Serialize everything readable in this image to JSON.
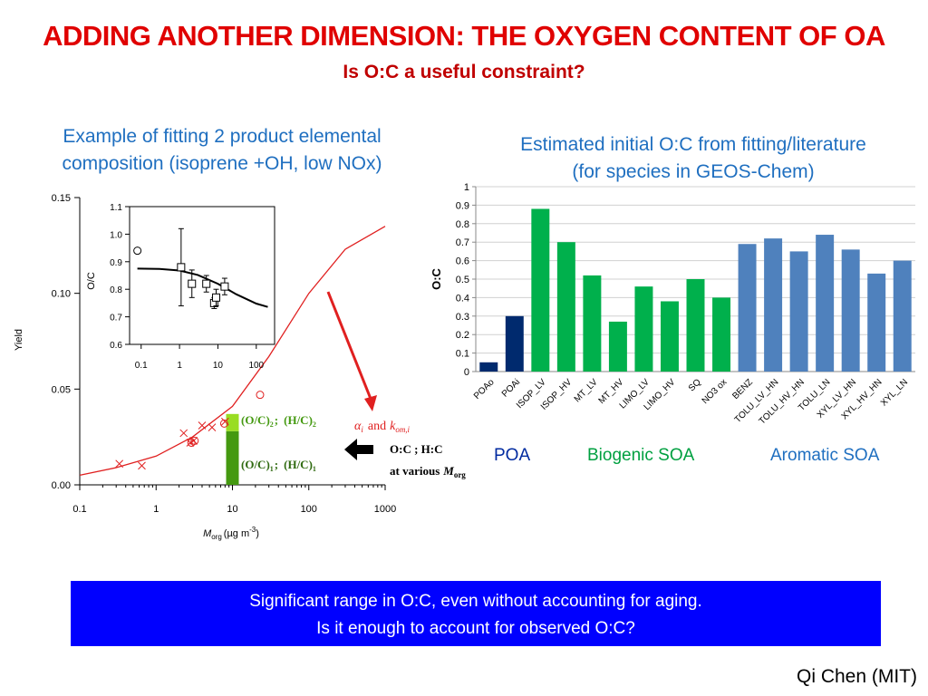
{
  "header": {
    "title": "ADDING ANOTHER DIMENSION: THE OXYGEN CONTENT OF OA",
    "subtitle": "Is O:C a useful constraint?"
  },
  "left_panel": {
    "caption_line1": "Example of fitting 2 product elemental",
    "caption_line2": "composition (isoprene +OH, low NOx)",
    "label_oc2": "(O/C)",
    "label_hc2": "(H/C)",
    "sub2": "2",
    "label_oc1": "(O/C)",
    "label_hc1": "(H/C)",
    "sub1": "1",
    "sep": ";",
    "alpha": "α",
    "alpha_sub": "i",
    "and_text": "and",
    "k": "k",
    "k_sub": "om,i",
    "arrow_label_line1": "O:C  ;  H:C",
    "arrow_label_line2": "at various",
    "m_org": "M",
    "m_org_sub": "org",
    "colors": {
      "curve": "#e02020",
      "bar_light": "#99dd22",
      "bar_dark": "#449910",
      "arrow": "#e02020"
    }
  },
  "right_panel": {
    "caption_line1": "Estimated initial O:C from fitting/literature",
    "caption_line2": "(for species in GEOS-Chem)",
    "group_labels": [
      {
        "text": "POA",
        "color": "#002aa0"
      },
      {
        "text": "Biogenic SOA",
        "color": "#00a040"
      },
      {
        "text": "Aromatic SOA",
        "color": "#1f6fc0"
      }
    ]
  },
  "chart_data": [
    {
      "type": "scatter",
      "xlabel": "M",
      "xlabel_sub": "org",
      "xlabel_units": "(µg m",
      "xlabel_sup": "-3",
      "xlabel_close": ")",
      "ylabel": "Yield",
      "xscale": "log",
      "xlim": [
        0.1,
        1000
      ],
      "ylim": [
        0.0,
        0.15
      ],
      "xticks": [
        "0.1",
        "1",
        "10",
        "100",
        "1000"
      ],
      "yticks": [
        "0.00",
        "0.05",
        "0.10",
        "0.15"
      ],
      "x_markers": [
        [
          0.33,
          0.011
        ],
        [
          0.65,
          0.01
        ],
        [
          2.3,
          0.027
        ],
        [
          2.8,
          0.022
        ],
        [
          3.1,
          0.023
        ],
        [
          4.0,
          0.031
        ],
        [
          5.4,
          0.03
        ],
        [
          8.0,
          0.033
        ]
      ],
      "circle_markers": [
        [
          2.9,
          0.022
        ],
        [
          3.2,
          0.023
        ],
        [
          7.8,
          0.032
        ],
        [
          23.0,
          0.047
        ]
      ],
      "fit_curve": [
        [
          0.1,
          0.005
        ],
        [
          0.3,
          0.009
        ],
        [
          1,
          0.015
        ],
        [
          3,
          0.025
        ],
        [
          10,
          0.041
        ],
        [
          30,
          0.067
        ],
        [
          100,
          0.1
        ],
        [
          300,
          0.123
        ],
        [
          1000,
          0.135
        ]
      ],
      "bar_segments": [
        {
          "x": 10,
          "from": 0.0,
          "to": 0.028,
          "color": "#449910"
        },
        {
          "x": 10,
          "from": 0.028,
          "to": 0.037,
          "color": "#99dd22"
        }
      ]
    },
    {
      "type": "scatter",
      "ylabel": "O/C",
      "xscale": "log",
      "xlim": [
        0.05,
        300
      ],
      "ylim": [
        0.6,
        1.1
      ],
      "xticks": [
        "0.1",
        "1",
        "10",
        "100"
      ],
      "yticks": [
        "0.6",
        "0.7",
        "0.8",
        "0.9",
        "1.0",
        "1.1"
      ],
      "circle_point": [
        0.08,
        0.94
      ],
      "square_points": [
        {
          "x": 1.1,
          "y": 0.88,
          "err": 0.14
        },
        {
          "x": 2.1,
          "y": 0.82,
          "err": 0.05
        },
        {
          "x": 5.0,
          "y": 0.82,
          "err": 0.03
        },
        {
          "x": 8.0,
          "y": 0.75,
          "err": 0.02
        },
        {
          "x": 9.0,
          "y": 0.77,
          "err": 0.03
        },
        {
          "x": 15.0,
          "y": 0.81,
          "err": 0.03
        }
      ],
      "fit_curve": [
        [
          0.08,
          0.875
        ],
        [
          0.3,
          0.874
        ],
        [
          1,
          0.868
        ],
        [
          3,
          0.852
        ],
        [
          10,
          0.82
        ],
        [
          30,
          0.782
        ],
        [
          100,
          0.748
        ],
        [
          200,
          0.736
        ]
      ]
    },
    {
      "type": "bar",
      "ylabel": "O:C",
      "ylim": [
        0,
        1
      ],
      "yticks": [
        "0",
        "0.1",
        "0.2",
        "0.3",
        "0.4",
        "0.5",
        "0.6",
        "0.7",
        "0.8",
        "0.9",
        "1"
      ],
      "categories": [
        "POAo",
        "POAi",
        "ISOP_LV",
        "ISOP_HV",
        "MT_LV",
        "MT_HV",
        "LIMO_LV",
        "LIMO_HV",
        "SQ",
        "NO3 ox",
        "BENZ",
        "TOLU_LV_HN",
        "TOLU_HV_HN",
        "TOLU_LN",
        "XYL_LV_HN",
        "XYL_HV_HN",
        "XYL_LN"
      ],
      "values": [
        0.05,
        0.3,
        0.88,
        0.7,
        0.52,
        0.27,
        0.46,
        0.38,
        0.5,
        0.4,
        0.69,
        0.72,
        0.65,
        0.74,
        0.66,
        0.53,
        0.6
      ],
      "colors": [
        "#002a6e",
        "#002a6e",
        "#00b04c",
        "#00b04c",
        "#00b04c",
        "#00b04c",
        "#00b04c",
        "#00b04c",
        "#00b04c",
        "#00b04c",
        "#4f81bd",
        "#4f81bd",
        "#4f81bd",
        "#4f81bd",
        "#4f81bd",
        "#4f81bd",
        "#4f81bd"
      ],
      "grid": true
    }
  ],
  "banner": {
    "line1": "Significant range in O:C, even without accounting for aging.",
    "line2": "Is it enough to account for observed O:C?"
  },
  "credit": "Qi Chen (MIT)"
}
